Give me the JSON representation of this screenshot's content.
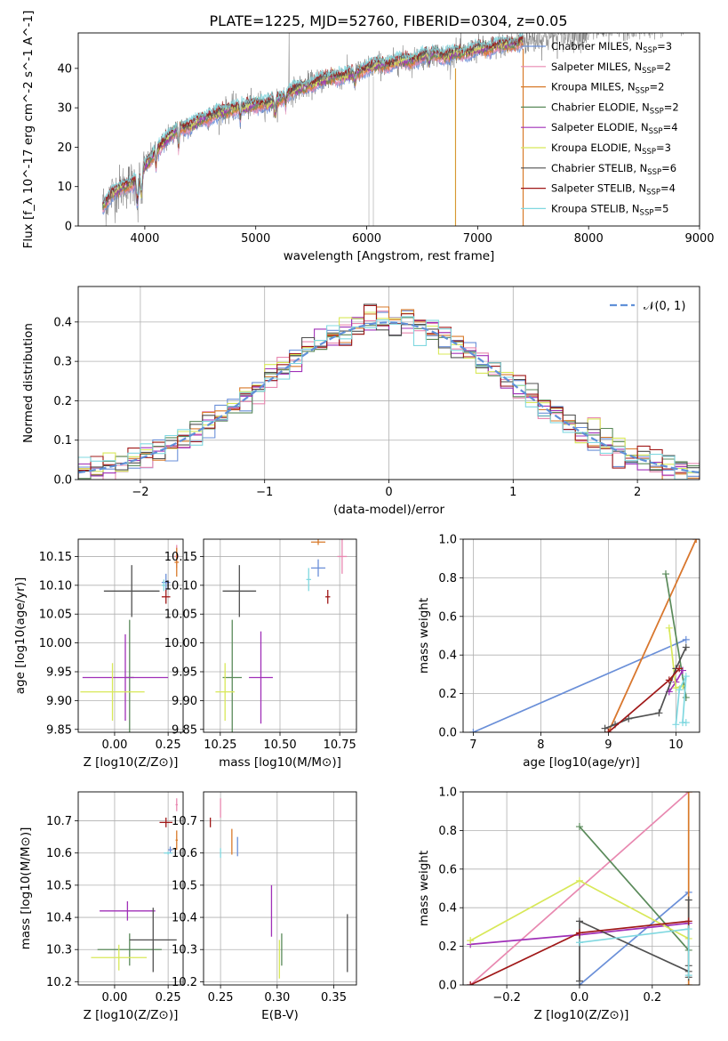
{
  "figure": {
    "title": "PLATE=1225, MJD=52760, FIBERID=0304, z=0.05"
  },
  "colors": {
    "Chabrier MILES": "#6a8fd8",
    "Salpeter MILES": "#e888b0",
    "Kroupa MILES": "#d87a2a",
    "Chabrier ELODIE": "#5a8a5a",
    "Salpeter ELODIE": "#a030b8",
    "Kroupa ELODIE": "#d8e858",
    "Chabrier STELIB": "#505050",
    "Salpeter STELIB": "#a01818",
    "Kroupa STELIB": "#80d8e0",
    "data": "#7a7a7a",
    "normal": "#6090d8"
  },
  "chart_data": [
    {
      "id": "spectrum",
      "type": "line",
      "title": "PLATE=1225, MJD=52760, FIBERID=0304, z=0.05",
      "xlabel": "wavelength [Angstrom, rest frame]",
      "ylabel": "Flux [f_λ 10^-17 erg cm^-2 s^-1 A^-1]",
      "xlim": [
        3400,
        9000
      ],
      "ylim": [
        0,
        49
      ],
      "xticks": [
        4000,
        5000,
        6000,
        7000,
        8000,
        9000
      ],
      "yticks": [
        0,
        10,
        20,
        30,
        40
      ],
      "grid": false,
      "legend_position": "right",
      "series": [
        {
          "name": "Chabrier MILES",
          "nssp": "3"
        },
        {
          "name": "Salpeter MILES",
          "nssp": "2"
        },
        {
          "name": "Kroupa MILES",
          "nssp": "2"
        },
        {
          "name": "Chabrier ELODIE",
          "nssp": "2"
        },
        {
          "name": "Salpeter ELODIE",
          "nssp": "4"
        },
        {
          "name": "Kroupa ELODIE",
          "nssp": "3"
        },
        {
          "name": "Chabrier STELIB",
          "nssp": "6"
        },
        {
          "name": "Salpeter STELIB",
          "nssp": "4"
        },
        {
          "name": "Kroupa STELIB",
          "nssp": "5"
        }
      ],
      "continuum": {
        "x": [
          3620,
          3700,
          3800,
          3900,
          4000,
          4100,
          4200,
          4300,
          4400,
          4500,
          4600,
          4700,
          4800,
          4900,
          5000,
          5100,
          5200,
          5300,
          5400,
          5500,
          5600,
          5700,
          5800,
          5900,
          6000,
          6100,
          6200,
          6300,
          6400,
          6500,
          6600,
          6700,
          6800,
          6900,
          7000,
          7100,
          7200,
          7300,
          7400
        ],
        "y": [
          5,
          8,
          10,
          11,
          15,
          19,
          22,
          25,
          25,
          27,
          28,
          29,
          30,
          30,
          31,
          31,
          32,
          34,
          35,
          36,
          37,
          38,
          38,
          39,
          40,
          41,
          41,
          42,
          42,
          43,
          44,
          43,
          44,
          44,
          45,
          45,
          46,
          46,
          47
        ]
      }
    },
    {
      "id": "residuals",
      "type": "bar",
      "xlabel": "(data-model)/error",
      "ylabel": "Normed distribution",
      "xlim": [
        -2.5,
        2.5
      ],
      "ylim": [
        0,
        0.49
      ],
      "xticks": [
        -2,
        -1,
        0,
        1,
        2
      ],
      "yticks": [
        0.0,
        0.1,
        0.2,
        0.3,
        0.4
      ],
      "grid": true,
      "legend": {
        "label": "𝒩(0, 1)",
        "position": "top-right"
      },
      "bin_width": 0.1
    },
    {
      "id": "age-vs-Z",
      "type": "scatter",
      "xlabel": "Z [log10(Z/Z⊙)]",
      "ylabel": "age [log10(age/yr)]",
      "xlim": [
        -0.17,
        0.32
      ],
      "ylim": [
        9.845,
        10.18
      ],
      "xticks": [
        0.0,
        0.25
      ],
      "yticks": [
        9.85,
        9.9,
        9.95,
        10.0,
        10.05,
        10.1,
        10.15
      ],
      "grid": true,
      "points": [
        {
          "s": "Chabrier MILES",
          "x": 0.24,
          "y": 10.105,
          "xe": 0.02,
          "ye": 0.015
        },
        {
          "s": "Salpeter MILES",
          "x": 0.29,
          "y": 10.15,
          "xe": 0.01,
          "ye": 0.02
        },
        {
          "s": "Kroupa MILES",
          "x": 0.29,
          "y": 10.14,
          "xe": 0.01,
          "ye": 0.025
        },
        {
          "s": "Chabrier ELODIE",
          "x": 0.07,
          "y": 9.94,
          "xe": 0.02,
          "ye": 0.1
        },
        {
          "s": "Salpeter ELODIE",
          "x": 0.05,
          "y": 9.94,
          "xe": 0.2,
          "ye": 0.075
        },
        {
          "s": "Kroupa ELODIE",
          "x": -0.01,
          "y": 9.915,
          "xe": 0.15,
          "ye": 0.05
        },
        {
          "s": "Chabrier STELIB",
          "x": 0.08,
          "y": 10.09,
          "xe": 0.13,
          "ye": 0.045
        },
        {
          "s": "Salpeter STELIB",
          "x": 0.24,
          "y": 10.08,
          "xe": 0.02,
          "ye": 0.012
        },
        {
          "s": "Kroupa STELIB",
          "x": 0.23,
          "y": 10.1,
          "xe": 0.01,
          "ye": 0.01
        }
      ]
    },
    {
      "id": "age-vs-mass",
      "type": "scatter",
      "xlabel": "mass [log10(M/M⊙)]",
      "ylabel": "",
      "xlim": [
        10.18,
        10.82
      ],
      "ylim": [
        9.845,
        10.18
      ],
      "xticks": [
        10.25,
        10.5,
        10.75
      ],
      "yticks": [
        9.85,
        9.9,
        9.95,
        10.0,
        10.05,
        10.1,
        10.15
      ],
      "grid": true,
      "points": [
        {
          "s": "Chabrier MILES",
          "x": 10.66,
          "y": 10.13,
          "xe": 0.03,
          "ye": 0.015
        },
        {
          "s": "Salpeter MILES",
          "x": 10.76,
          "y": 10.15,
          "xe": 0.02,
          "ye": 0.03
        },
        {
          "s": "Kroupa MILES",
          "x": 10.66,
          "y": 10.175,
          "xe": 0.03,
          "ye": 0.005
        },
        {
          "s": "Chabrier ELODIE",
          "x": 10.3,
          "y": 9.94,
          "xe": 0.04,
          "ye": 0.1
        },
        {
          "s": "Salpeter ELODIE",
          "x": 10.42,
          "y": 9.94,
          "xe": 0.05,
          "ye": 0.08
        },
        {
          "s": "Kroupa ELODIE",
          "x": 10.27,
          "y": 9.915,
          "xe": 0.04,
          "ye": 0.05
        },
        {
          "s": "Chabrier STELIB",
          "x": 10.33,
          "y": 10.09,
          "xe": 0.07,
          "ye": 0.045
        },
        {
          "s": "Salpeter STELIB",
          "x": 10.7,
          "y": 10.08,
          "xe": 0.01,
          "ye": 0.012
        },
        {
          "s": "Kroupa STELIB",
          "x": 10.62,
          "y": 10.11,
          "xe": 0.01,
          "ye": 0.02
        }
      ]
    },
    {
      "id": "weight-vs-age",
      "type": "line",
      "xlabel": "age [log10(age/yr)]",
      "ylabel": "mass weight",
      "xlim": [
        6.85,
        10.35
      ],
      "ylim": [
        0,
        1
      ],
      "xticks": [
        7,
        8,
        9,
        10
      ],
      "yticks": [
        0.0,
        0.2,
        0.4,
        0.6,
        0.8,
        1.0
      ],
      "grid": true,
      "series": [
        {
          "name": "Chabrier MILES",
          "x": [
            7.0,
            10.15
          ],
          "y": [
            0.0,
            0.48
          ]
        },
        {
          "name": "Salpeter MILES",
          "x": [
            9.0,
            10.3
          ],
          "y": [
            0.0,
            1.0
          ]
        },
        {
          "name": "Kroupa MILES",
          "x": [
            9.0,
            10.3
          ],
          "y": [
            0.0,
            1.0
          ]
        },
        {
          "name": "Chabrier ELODIE",
          "x": [
            9.85,
            10.15
          ],
          "y": [
            0.82,
            0.18
          ]
        },
        {
          "name": "Salpeter ELODIE",
          "x": [
            9.9,
            10.0,
            10.1
          ],
          "y": [
            0.21,
            0.26,
            0.32
          ]
        },
        {
          "name": "Kroupa ELODIE",
          "x": [
            9.9,
            10.0,
            10.1
          ],
          "y": [
            0.54,
            0.23,
            0.24
          ]
        },
        {
          "name": "Chabrier STELIB",
          "x": [
            8.95,
            9.1,
            9.3,
            9.75,
            10.0,
            10.15
          ],
          "y": [
            0.02,
            0.04,
            0.07,
            0.1,
            0.33,
            0.44
          ]
        },
        {
          "name": "Salpeter STELIB",
          "x": [
            9.0,
            9.9,
            10.05
          ],
          "y": [
            0.0,
            0.27,
            0.33
          ]
        },
        {
          "name": "Kroupa STELIB",
          "x": [
            10.0,
            10.05,
            10.15,
            10.1,
            10.15
          ],
          "y": [
            0.04,
            0.22,
            0.29,
            0.05,
            0.05
          ]
        }
      ]
    },
    {
      "id": "mass-vs-Z",
      "type": "scatter",
      "xlabel": "Z [log10(Z/Z⊙)]",
      "ylabel": "mass [log10(M/M⊙)]",
      "xlim": [
        -0.17,
        0.32
      ],
      "ylim": [
        10.19,
        10.79
      ],
      "xticks": [
        0.0,
        0.25
      ],
      "yticks": [
        10.2,
        10.3,
        10.4,
        10.5,
        10.6,
        10.7
      ],
      "grid": true,
      "points": [
        {
          "s": "Chabrier MILES",
          "x": 0.26,
          "y": 10.61,
          "xe": 0.01,
          "ye": 0.01
        },
        {
          "s": "Salpeter MILES",
          "x": 0.29,
          "y": 10.75,
          "xe": 0.005,
          "ye": 0.02
        },
        {
          "s": "Kroupa MILES",
          "x": 0.29,
          "y": 10.64,
          "xe": 0.005,
          "ye": 0.03
        },
        {
          "s": "Chabrier ELODIE",
          "x": 0.07,
          "y": 10.3,
          "xe": 0.15,
          "ye": 0.05
        },
        {
          "s": "Salpeter ELODIE",
          "x": 0.06,
          "y": 10.42,
          "xe": 0.13,
          "ye": 0.03
        },
        {
          "s": "Kroupa ELODIE",
          "x": 0.02,
          "y": 10.275,
          "xe": 0.13,
          "ye": 0.04
        },
        {
          "s": "Chabrier STELIB",
          "x": 0.18,
          "y": 10.33,
          "xe": 0.11,
          "ye": 0.1
        },
        {
          "s": "Salpeter STELIB",
          "x": 0.24,
          "y": 10.695,
          "xe": 0.03,
          "ye": 0.015
        },
        {
          "s": "Kroupa STELIB",
          "x": 0.25,
          "y": 10.6,
          "xe": 0.02,
          "ye": 0.005
        }
      ]
    },
    {
      "id": "mass-vs-ebv",
      "type": "scatter",
      "xlabel": "E(B-V)",
      "ylabel": "",
      "xlim": [
        0.235,
        0.37
      ],
      "ylim": [
        10.19,
        10.79
      ],
      "xticks": [
        0.25,
        0.3,
        0.35
      ],
      "yticks": [
        10.2,
        10.3,
        10.4,
        10.5,
        10.6,
        10.7
      ],
      "grid": true,
      "points": [
        {
          "s": "Chabrier MILES",
          "x": 0.265,
          "y": 10.62,
          "xe": 0.0,
          "ye": 0.03
        },
        {
          "s": "Salpeter MILES",
          "x": 0.25,
          "y": 10.74,
          "xe": 0.0,
          "ye": 0.03
        },
        {
          "s": "Kroupa MILES",
          "x": 0.26,
          "y": 10.635,
          "xe": 0.0,
          "ye": 0.04
        },
        {
          "s": "Chabrier ELODIE",
          "x": 0.304,
          "y": 10.3,
          "xe": 0.0,
          "ye": 0.05
        },
        {
          "s": "Salpeter ELODIE",
          "x": 0.295,
          "y": 10.42,
          "xe": 0.0,
          "ye": 0.08
        },
        {
          "s": "Kroupa ELODIE",
          "x": 0.302,
          "y": 10.27,
          "xe": 0.0,
          "ye": 0.06
        },
        {
          "s": "Chabrier STELIB",
          "x": 0.362,
          "y": 10.32,
          "xe": 0.0,
          "ye": 0.09
        },
        {
          "s": "Salpeter STELIB",
          "x": 0.241,
          "y": 10.695,
          "xe": 0.0,
          "ye": 0.015
        },
        {
          "s": "Kroupa STELIB",
          "x": 0.25,
          "y": 10.6,
          "xe": 0.0,
          "ye": 0.015
        }
      ]
    },
    {
      "id": "weight-vs-Z",
      "type": "line",
      "xlabel": "Z [log10(Z/Z⊙)]",
      "ylabel": "mass weight",
      "xlim": [
        -0.32,
        0.33
      ],
      "ylim": [
        0,
        1
      ],
      "xticks": [
        -0.2,
        0.0,
        0.2
      ],
      "yticks": [
        0.0,
        0.2,
        0.4,
        0.6,
        0.8,
        1.0
      ],
      "grid": true,
      "series": [
        {
          "name": "Chabrier MILES",
          "x": [
            0.0,
            0.3
          ],
          "y": [
            0.0,
            0.48
          ]
        },
        {
          "name": "Salpeter MILES",
          "x": [
            -0.3,
            0.3
          ],
          "y": [
            0.0,
            1.0
          ]
        },
        {
          "name": "Kroupa MILES",
          "x": [
            0.3,
            0.3
          ],
          "y": [
            0.0,
            1.0
          ]
        },
        {
          "name": "Chabrier ELODIE",
          "x": [
            0.0,
            0.3
          ],
          "y": [
            0.82,
            0.18
          ]
        },
        {
          "name": "Salpeter ELODIE",
          "x": [
            -0.3,
            0.0,
            0.3
          ],
          "y": [
            0.21,
            0.26,
            0.32
          ]
        },
        {
          "name": "Kroupa ELODIE",
          "x": [
            -0.3,
            0.0,
            0.3
          ],
          "y": [
            0.23,
            0.54,
            0.24
          ]
        },
        {
          "name": "Chabrier STELIB",
          "x": [
            0.0,
            0.0,
            0.3,
            0.3,
            0.3,
            0.3
          ],
          "y": [
            0.02,
            0.33,
            0.07,
            0.1,
            0.44,
            0.04
          ]
        },
        {
          "name": "Salpeter STELIB",
          "x": [
            -0.3,
            0.0,
            0.3
          ],
          "y": [
            0.0,
            0.27,
            0.33
          ]
        },
        {
          "name": "Kroupa STELIB",
          "x": [
            0.0,
            0.3,
            0.3
          ],
          "y": [
            0.22,
            0.29,
            0.05
          ]
        }
      ]
    }
  ]
}
